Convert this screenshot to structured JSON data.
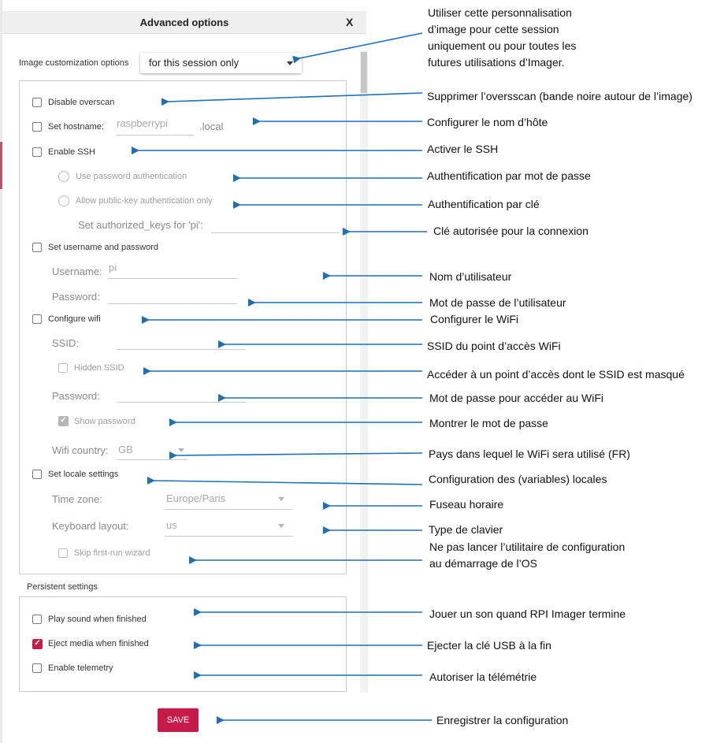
{
  "dialog": {
    "title": "Advanced options",
    "close_label": "X",
    "image_customization": {
      "label": "Image customization options",
      "value": "for this session only"
    },
    "disable_overscan": {
      "label": "Disable overscan",
      "checked": false
    },
    "hostname": {
      "label": "Set hostname:",
      "placeholder": "raspberrypi",
      "suffix": ".local",
      "checked": false
    },
    "ssh": {
      "label": "Enable SSH",
      "checked": false,
      "password_auth": "Use password authentication",
      "pubkey_auth": "Allow public-key authentication only",
      "authorized_keys_label": "Set authorized_keys for 'pi':"
    },
    "user": {
      "label": "Set username and password",
      "checked": false,
      "username_label": "Username:",
      "username_placeholder": "pi",
      "password_label": "Password:"
    },
    "wifi": {
      "label": "Configure wifi",
      "checked": false,
      "ssid_label": "SSID:",
      "hidden_ssid": "Hidden SSID",
      "password_label": "Password:",
      "show_password": "Show password",
      "country_label": "Wifi country:",
      "country_value": "GB"
    },
    "locale": {
      "label": "Set locale settings",
      "checked": false,
      "timezone_label": "Time zone:",
      "timezone_value": "Europe/Paris",
      "keyboard_label": "Keyboard layout:",
      "keyboard_value": "us",
      "skip_wizard": "Skip first-run wizard"
    },
    "persistent": {
      "title": "Persistent settings",
      "play_sound": "Play sound when finished",
      "eject_media": "Eject media when finished",
      "telemetry": "Enable telemetry"
    },
    "save_label": "SAVE"
  },
  "annotations": {
    "customization": [
      "Utiliser cette personnalisation",
      "d’image pour cette session",
      "uniquement ou pour toutes les",
      "futures utilisations d’Imager."
    ],
    "overscan": "Supprimer l’oversscan (bande noire autour de l’image)",
    "hostname": "Configurer le nom d’hôte",
    "ssh": "Activer le SSH",
    "password_auth": "Authentification par mot de passe",
    "key_auth": "Authentification par clé",
    "authorized_key": "Clé autorisée pour la connexion",
    "username": "Nom d’utilisateur",
    "user_password": "Mot de passe de l’utilisateur",
    "wifi": "Configurer le WiFi",
    "ssid": "SSID du point d’accès WiFi",
    "hidden_ssid": "Accéder à un point d’accès dont le SSID est masqué",
    "wifi_password": "Mot de passe pour accéder au WiFi",
    "show_password": "Montrer le mot de passe",
    "wifi_country": "Pays dans lequel le WiFi sera utilisé (FR)",
    "locale": "Configuration des (variables) locales",
    "timezone": "Fuseau horaire",
    "keyboard": "Type de clavier",
    "first_run": [
      "Ne pas lancer l’utilitaire de configuration",
      "au démarrage de l’OS"
    ],
    "play_sound": "Jouer un son quand RPI Imager termine",
    "eject": "Ejecter la clé USB à la fin",
    "telemetry": "Autoriser la télémétrie",
    "save": "Enregistrer la configuration"
  },
  "colors": {
    "accent": "#c51a4a",
    "arrow": "#1f6fb5"
  }
}
